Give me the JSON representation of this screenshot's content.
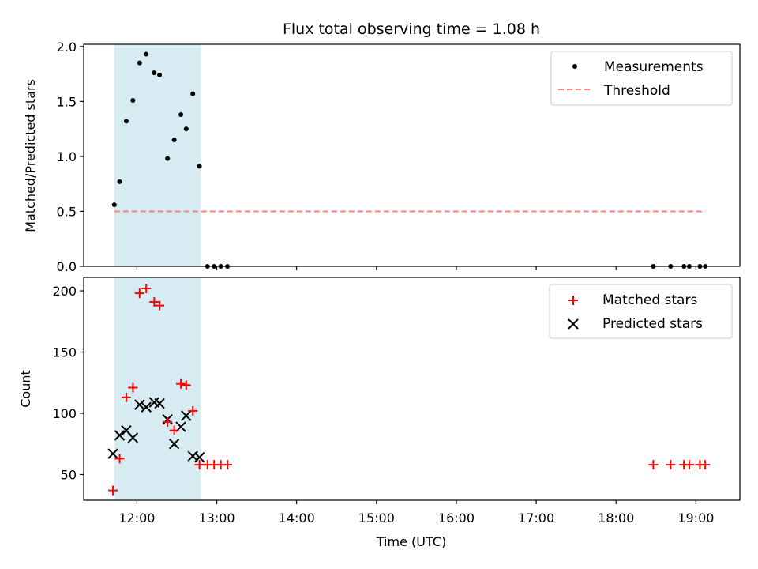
{
  "title": "Flux total observing time = 1.08 h",
  "colors": {
    "shade": "#add8e6",
    "threshold": "#ff7f7f",
    "measurement": "#000000",
    "matched": "#ff0000",
    "predicted": "#000000"
  },
  "chart_data": [
    {
      "type": "scatter",
      "ylabel": "Matched/Predicted stars",
      "ylim": [
        0,
        2.02
      ],
      "yticks": [
        0.0,
        0.5,
        1.0,
        1.5,
        2.0
      ],
      "ytick_labels": [
        "0.0",
        "0.5",
        "1.0",
        "1.5",
        "2.0"
      ],
      "xlim": [
        "11:20",
        "19:33"
      ],
      "shaded_span": [
        "11:43",
        "12:48"
      ],
      "legend": {
        "placement": "upper right",
        "entries": [
          "Measurements",
          "Threshold"
        ]
      },
      "series": [
        {
          "name": "Measurements",
          "marker": "dot",
          "x": [
            "11:43",
            "11:47",
            "11:52",
            "11:57",
            "12:02",
            "12:07",
            "12:13",
            "12:17",
            "12:23",
            "12:28",
            "12:33",
            "12:37",
            "12:42",
            "12:47",
            "12:53",
            "12:58",
            "13:03",
            "13:08",
            "18:28",
            "18:41",
            "18:51",
            "18:55",
            "19:03",
            "19:07"
          ],
          "y": [
            0.56,
            0.77,
            1.32,
            1.51,
            1.85,
            1.93,
            1.76,
            1.74,
            0.98,
            1.15,
            1.38,
            1.25,
            1.57,
            0.91,
            0,
            0,
            0,
            0,
            0,
            0,
            0,
            0,
            0,
            0
          ]
        },
        {
          "name": "Threshold",
          "style": "dashed",
          "x": [
            "11:43",
            "19:07"
          ],
          "y": [
            0.5,
            0.5
          ]
        }
      ]
    },
    {
      "type": "scatter",
      "xlabel": "Time (UTC)",
      "ylabel": "Count",
      "ylim": [
        29,
        211
      ],
      "yticks": [
        50,
        100,
        150,
        200
      ],
      "ytick_labels": [
        "50",
        "100",
        "150",
        "200"
      ],
      "xlim": [
        "11:20",
        "19:33"
      ],
      "xticks": [
        "12:00",
        "13:00",
        "14:00",
        "15:00",
        "16:00",
        "17:00",
        "18:00",
        "19:00"
      ],
      "shaded_span": [
        "11:43",
        "12:48"
      ],
      "legend": {
        "placement": "upper right",
        "entries": [
          "Matched stars",
          "Predicted stars"
        ]
      },
      "series": [
        {
          "name": "Matched stars",
          "marker": "plus",
          "x": [
            "11:42",
            "11:47",
            "11:52",
            "11:57",
            "12:02",
            "12:07",
            "12:13",
            "12:17",
            "12:23",
            "12:28",
            "12:33",
            "12:37",
            "12:42",
            "12:47",
            "12:53",
            "12:58",
            "13:03",
            "13:08",
            "18:28",
            "18:41",
            "18:51",
            "18:55",
            "19:03",
            "19:07"
          ],
          "y": [
            37,
            63,
            113,
            121,
            198,
            202,
            191,
            188,
            93,
            86,
            124,
            123,
            102,
            58,
            58,
            58,
            58,
            58,
            58,
            58,
            58,
            58,
            58,
            58
          ]
        },
        {
          "name": "Predicted stars",
          "marker": "x",
          "x": [
            "11:42",
            "11:47",
            "11:52",
            "11:57",
            "12:02",
            "12:07",
            "12:13",
            "12:17",
            "12:23",
            "12:28",
            "12:33",
            "12:37",
            "12:42",
            "12:47"
          ],
          "y": [
            67,
            82,
            86,
            80,
            107,
            105,
            109,
            108,
            95,
            75,
            89,
            98,
            65,
            64
          ]
        }
      ]
    }
  ]
}
